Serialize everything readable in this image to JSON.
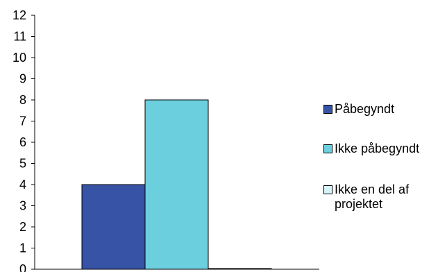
{
  "chart_data": {
    "type": "bar",
    "categories": [
      ""
    ],
    "series": [
      {
        "name": "Påbegyndt",
        "values": [
          4
        ],
        "color": "#3653A6"
      },
      {
        "name": "Ikke påbegyndt",
        "values": [
          8
        ],
        "color": "#6CCFDD"
      },
      {
        "name": "Ikke en del af projektet",
        "values": [
          0
        ],
        "color": "#D6F3F8"
      }
    ],
    "ylim": [
      0,
      12
    ],
    "yticks": [
      0,
      1,
      2,
      3,
      4,
      5,
      6,
      7,
      8,
      9,
      10,
      11,
      12
    ],
    "grid": false,
    "legend_position": "right"
  }
}
